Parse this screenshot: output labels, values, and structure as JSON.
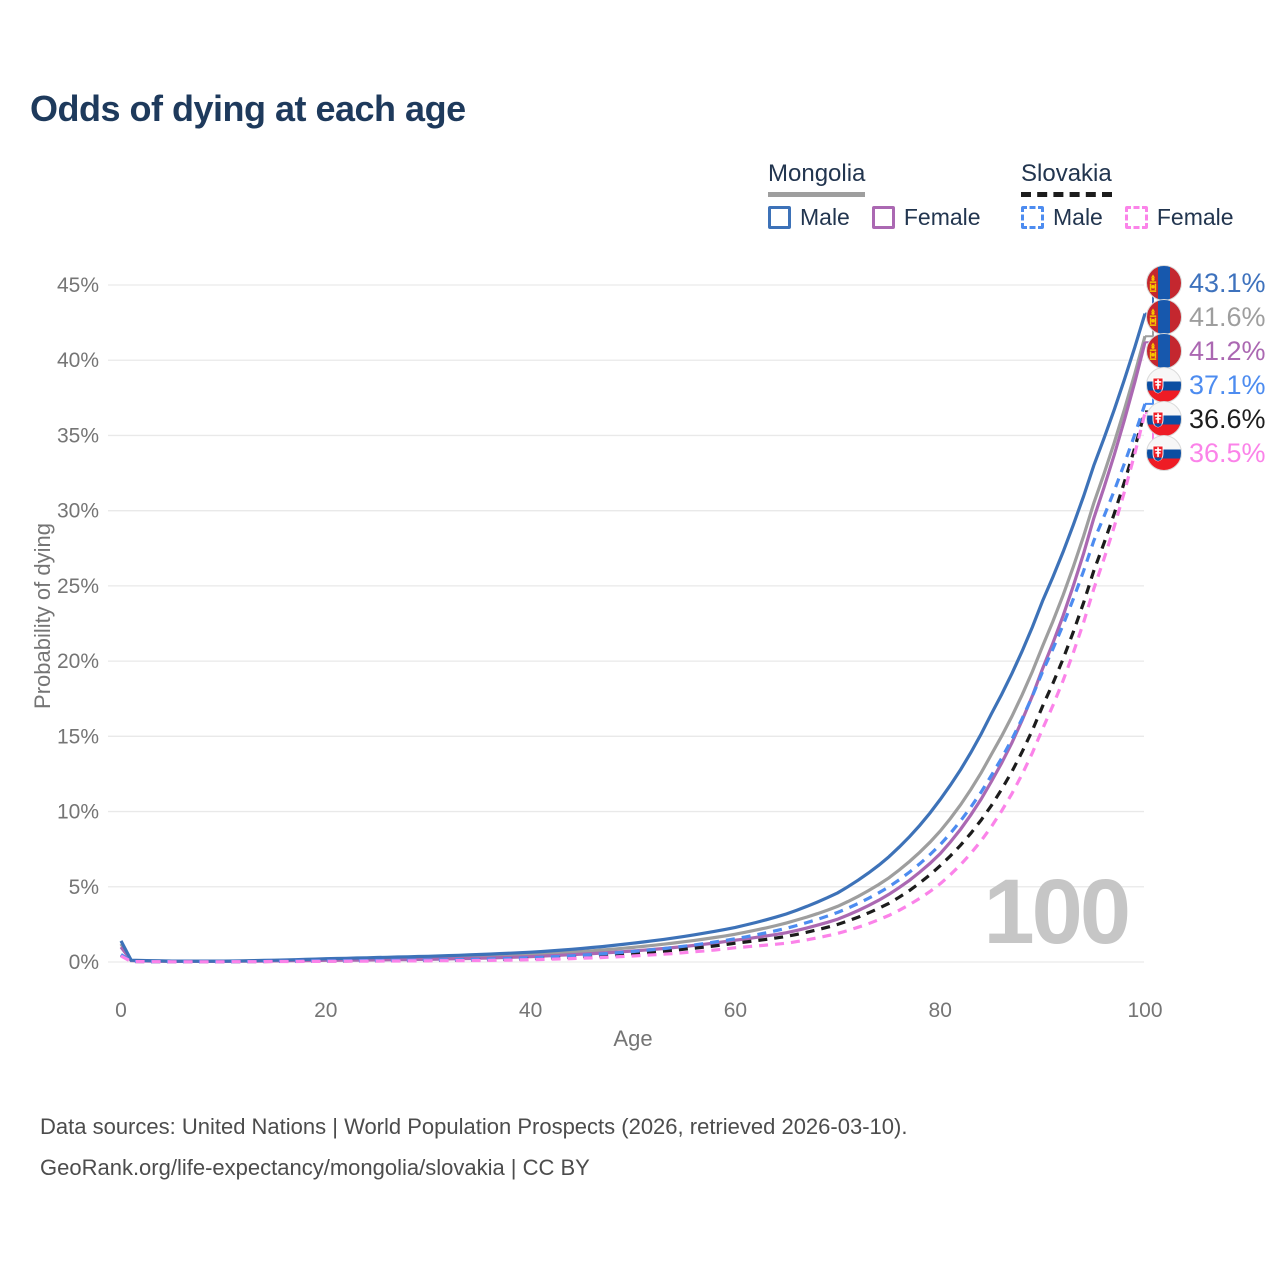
{
  "title": "Odds of dying at each age",
  "watermark": "100",
  "colors": {
    "title": "#1e3a5c",
    "legend_text": "#22354f",
    "axis_text": "#757575",
    "grid": "#e9e9e9",
    "watermark": "#c6c6c6",
    "footer": "#4c4c4c"
  },
  "legend": {
    "groups": [
      {
        "name": "Mongolia",
        "underline": "solid",
        "underline_color": "#9e9e9e",
        "items": [
          {
            "label": "Male",
            "color": "#3d72b8",
            "dashed": false
          },
          {
            "label": "Female",
            "color": "#ab68b2",
            "dashed": false
          }
        ]
      },
      {
        "name": "Slovakia",
        "underline": "dashed",
        "underline_color": "#1c1c1c",
        "items": [
          {
            "label": "Male",
            "color": "#4d8cf0",
            "dashed": true
          },
          {
            "label": "Female",
            "color": "#fb83e9",
            "dashed": true
          }
        ]
      }
    ]
  },
  "y_axis": {
    "label": "Probability of dying",
    "ticks": [
      "0%",
      "5%",
      "10%",
      "15%",
      "20%",
      "25%",
      "30%",
      "35%",
      "40%",
      "45%"
    ],
    "tick_values": [
      0,
      5,
      10,
      15,
      20,
      25,
      30,
      35,
      40,
      45
    ]
  },
  "x_axis": {
    "label": "Age",
    "ticks": [
      0,
      20,
      40,
      60,
      80,
      100
    ]
  },
  "end_labels": [
    {
      "value": "43.1%",
      "color": "#3e72bd",
      "flag": "mongolia",
      "series": 0
    },
    {
      "value": "41.6%",
      "color": "#9e9e9e",
      "flag": "mongolia",
      "series": 1
    },
    {
      "value": "41.2%",
      "color": "#ab68b2",
      "flag": "mongolia",
      "series": 2
    },
    {
      "value": "37.1%",
      "color": "#4d8cf0",
      "flag": "slovakia",
      "series": 3
    },
    {
      "value": "36.6%",
      "color": "#1d1d1d",
      "flag": "slovakia",
      "series": 4
    },
    {
      "value": "36.5%",
      "color": "#fb83e9",
      "flag": "slovakia",
      "series": 5
    }
  ],
  "footer": {
    "line1": "Data sources: United Nations | World Population Prospects (2026, retrieved 2026-03-10).",
    "line2": "GeoRank.org/life-expectancy/mongolia/slovakia | CC BY"
  },
  "chart_data": {
    "type": "line",
    "title": "Odds of dying at each age",
    "xlabel": "Age",
    "ylabel": "Probability of dying",
    "xlim": [
      0,
      100
    ],
    "ylim": [
      0,
      45
    ],
    "grid": "horizontal",
    "legend_position": "top-right",
    "y_unit": "percent",
    "x": [
      0,
      1,
      5,
      10,
      15,
      20,
      25,
      30,
      35,
      40,
      45,
      50,
      55,
      60,
      65,
      70,
      75,
      80,
      85,
      90,
      95,
      100
    ],
    "series": [
      {
        "name": "Mongolia Male",
        "color": "#3d72b8",
        "dash": false,
        "end_label": "43.1%",
        "values": [
          1.4,
          0.12,
          0.06,
          0.06,
          0.12,
          0.22,
          0.3,
          0.38,
          0.5,
          0.65,
          0.9,
          1.25,
          1.7,
          2.3,
          3.2,
          4.6,
          7.0,
          10.8,
          16.5,
          24.0,
          33.0,
          43.1
        ]
      },
      {
        "name": "Mongolia",
        "color": "#9e9e9e",
        "dash": false,
        "end_label": "41.6%",
        "values": [
          1.2,
          0.1,
          0.05,
          0.05,
          0.09,
          0.16,
          0.22,
          0.28,
          0.37,
          0.5,
          0.7,
          0.97,
          1.35,
          1.85,
          2.6,
          3.7,
          5.6,
          8.7,
          13.8,
          21.0,
          30.5,
          41.6
        ]
      },
      {
        "name": "Mongolia Female",
        "color": "#ab68b2",
        "dash": false,
        "end_label": "41.2%",
        "values": [
          1.0,
          0.09,
          0.04,
          0.04,
          0.07,
          0.11,
          0.14,
          0.18,
          0.25,
          0.36,
          0.52,
          0.73,
          1.03,
          1.45,
          1.95,
          2.85,
          4.5,
          7.2,
          12.0,
          19.5,
          29.5,
          41.2
        ]
      },
      {
        "name": "Slovakia Male",
        "color": "#4d8cf0",
        "dash": true,
        "end_label": "37.1%",
        "values": [
          0.5,
          0.04,
          0.02,
          0.02,
          0.05,
          0.08,
          0.1,
          0.13,
          0.18,
          0.28,
          0.45,
          0.7,
          1.05,
          1.55,
          2.25,
          3.3,
          5.0,
          7.8,
          12.4,
          19.3,
          28.0,
          37.1
        ]
      },
      {
        "name": "Slovakia",
        "color": "#1c1c1c",
        "dash": true,
        "end_label": "36.6%",
        "values": [
          0.45,
          0.035,
          0.02,
          0.02,
          0.04,
          0.06,
          0.08,
          0.1,
          0.14,
          0.22,
          0.35,
          0.55,
          0.85,
          1.25,
          1.7,
          2.5,
          3.9,
          6.4,
          10.4,
          17.0,
          26.0,
          36.6
        ]
      },
      {
        "name": "Slovakia Female",
        "color": "#fb83e9",
        "dash": true,
        "end_label": "36.5%",
        "values": [
          0.4,
          0.03,
          0.015,
          0.015,
          0.03,
          0.045,
          0.06,
          0.08,
          0.1,
          0.15,
          0.25,
          0.4,
          0.62,
          0.95,
          1.25,
          1.9,
          3.1,
          5.2,
          9.0,
          15.5,
          24.8,
          36.5
        ]
      }
    ]
  }
}
